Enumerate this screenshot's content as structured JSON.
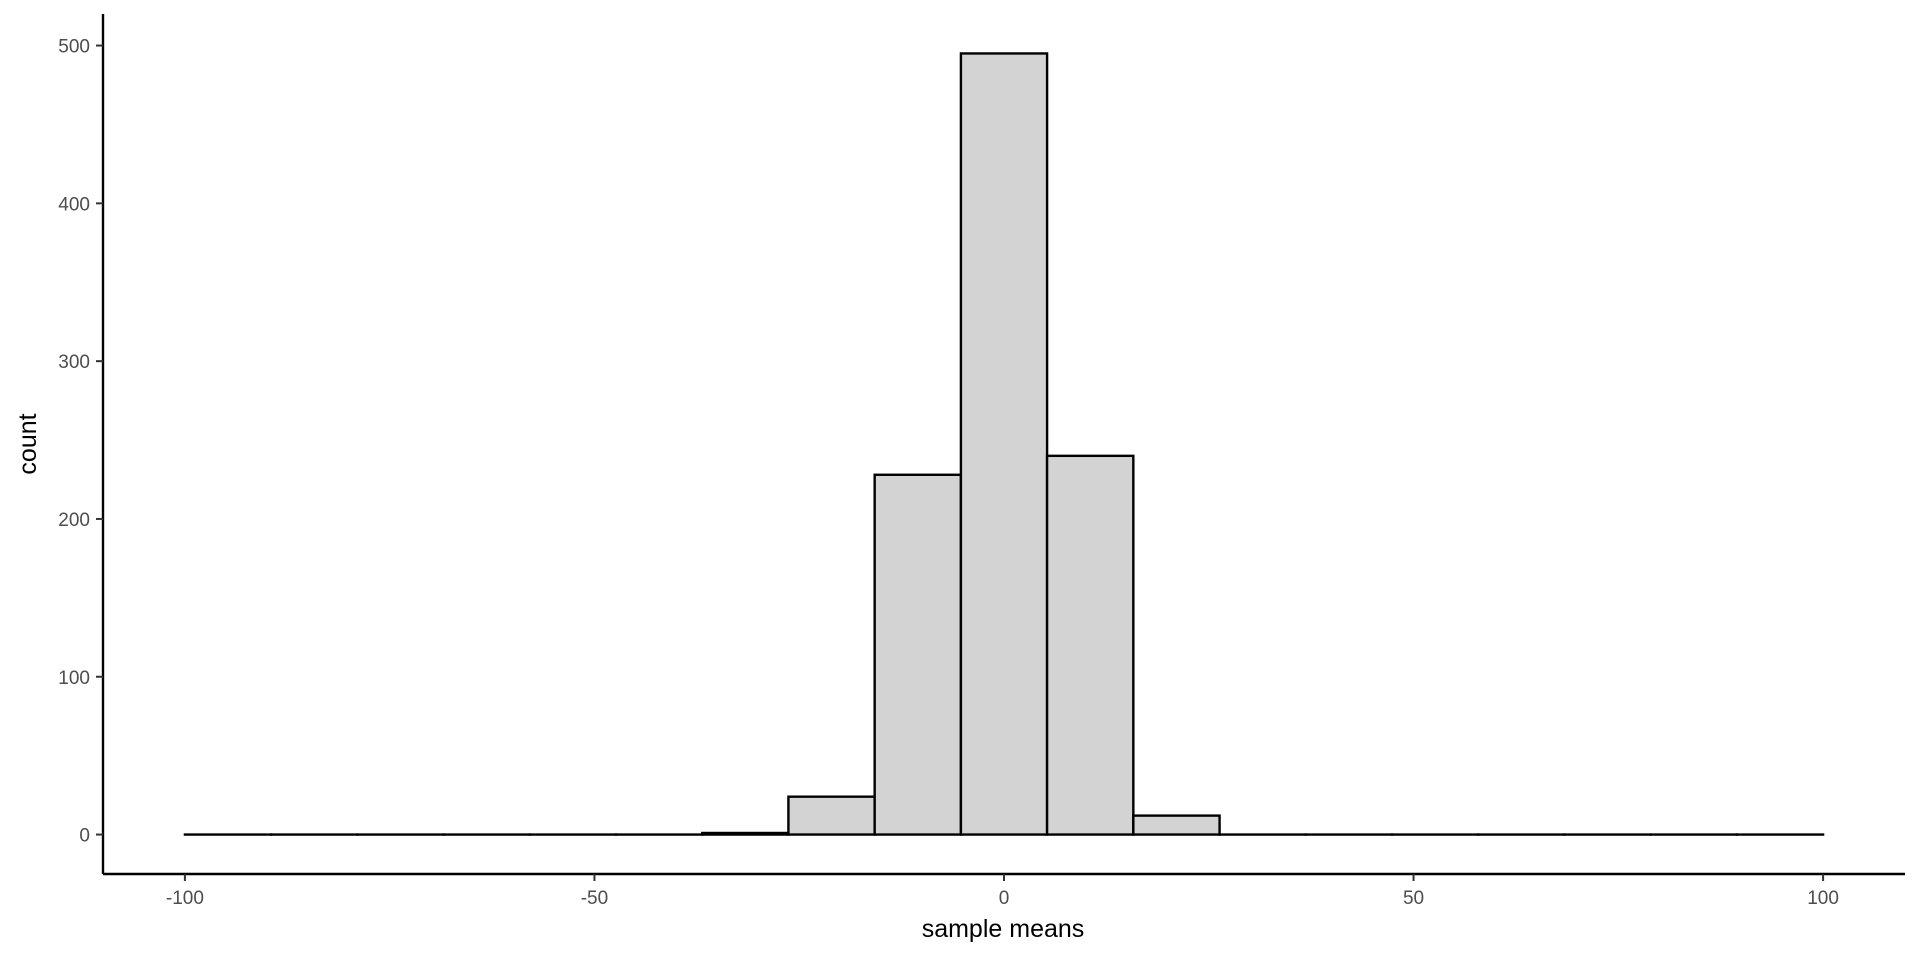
{
  "chart_data": {
    "type": "bar",
    "subtype": "histogram",
    "xlabel": "sample means",
    "ylabel": "count",
    "xlim": [
      -110,
      110
    ],
    "ylim": [
      -25,
      520
    ],
    "x_ticks": [
      -100,
      -50,
      0,
      50,
      100
    ],
    "x_tick_labels": [
      "-100",
      "-50",
      "0",
      "50",
      "100"
    ],
    "y_ticks": [
      0,
      100,
      200,
      300,
      400,
      500
    ],
    "y_tick_labels": [
      "0",
      "100",
      "200",
      "300",
      "400",
      "500"
    ],
    "bin_width": 10.53,
    "bins": [
      {
        "x0": -100.0,
        "x1": -89.47,
        "count": 0
      },
      {
        "x0": -89.47,
        "x1": -78.95,
        "count": 0
      },
      {
        "x0": -78.95,
        "x1": -68.42,
        "count": 0
      },
      {
        "x0": -68.42,
        "x1": -57.89,
        "count": 0
      },
      {
        "x0": -57.89,
        "x1": -47.37,
        "count": 0
      },
      {
        "x0": -47.37,
        "x1": -36.84,
        "count": 0
      },
      {
        "x0": -36.84,
        "x1": -26.32,
        "count": 1
      },
      {
        "x0": -26.32,
        "x1": -15.79,
        "count": 24
      },
      {
        "x0": -15.79,
        "x1": -5.26,
        "count": 228
      },
      {
        "x0": -5.26,
        "x1": 5.26,
        "count": 495
      },
      {
        "x0": 5.26,
        "x1": 15.79,
        "count": 240
      },
      {
        "x0": 15.79,
        "x1": 26.32,
        "count": 12
      },
      {
        "x0": 26.32,
        "x1": 36.84,
        "count": 0
      },
      {
        "x0": 36.84,
        "x1": 47.37,
        "count": 0
      },
      {
        "x0": 47.37,
        "x1": 57.89,
        "count": 0
      },
      {
        "x0": 57.89,
        "x1": 68.42,
        "count": 0
      },
      {
        "x0": 68.42,
        "x1": 78.95,
        "count": 0
      },
      {
        "x0": 78.95,
        "x1": 89.47,
        "count": 0
      },
      {
        "x0": 89.47,
        "x1": 100.0,
        "count": 0
      }
    ],
    "fill_color": "#d3d3d3",
    "outline_color": "#000000",
    "grid": false,
    "legend": "none"
  }
}
